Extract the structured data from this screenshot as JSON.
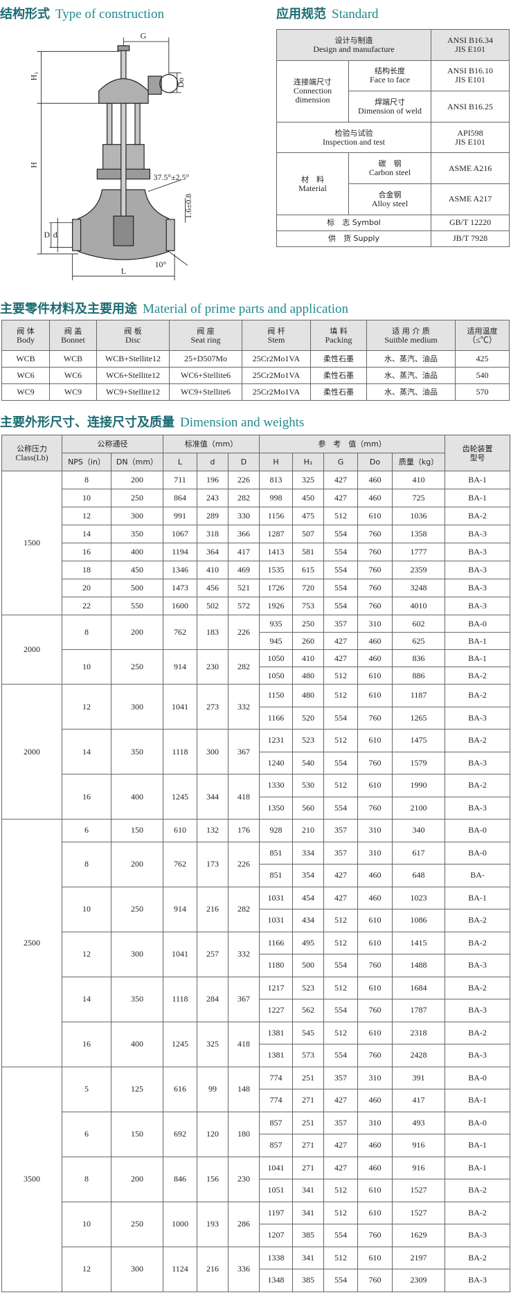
{
  "construction": {
    "title_cn": "结构形式",
    "title_en": "Type of construction",
    "labels": {
      "G": "G",
      "H1": "H₁",
      "Do": "Do",
      "H": "H",
      "angle": "37.5°±2.5°",
      "tolerance": "1.6±0.8",
      "d": "d",
      "D": "D",
      "L": "L",
      "bevel": "10°"
    }
  },
  "standard": {
    "title_cn": "应用规范",
    "title_en": "Standard",
    "design": {
      "cn": "设计与制造",
      "en": "Design and manufacture",
      "value": [
        "ANSI B16.34",
        "JIS E101"
      ]
    },
    "connection": {
      "cn": "连接端尺寸",
      "en": [
        "Connection",
        "dimension"
      ],
      "face": {
        "cn": "结构长度",
        "en": "Face to face",
        "value": [
          "ANSI B16.10",
          "JIS E101"
        ]
      },
      "weld": {
        "cn": "焊端尺寸",
        "en": "Dimension of weld",
        "value": "ANSI B16.25"
      }
    },
    "inspection": {
      "cn": "检验与试验",
      "en": "Inspection and test",
      "value": [
        "API598",
        "JIS E101"
      ]
    },
    "material": {
      "cn": "材　料",
      "en": "Material",
      "carbon": {
        "cn": "碳　钢",
        "en": "Carbon steel",
        "value": "ASME A216"
      },
      "alloy": {
        "cn": "合金钢",
        "en": "Alloy steel",
        "value": "ASME A217"
      }
    },
    "symbol": {
      "label": "标　志 Symbol",
      "value": "GB/T 12220"
    },
    "supply": {
      "label": "供　货 Supply",
      "value": "JB/T 7928"
    }
  },
  "materials": {
    "title_cn": "主要零件材料及主要用途",
    "title_en": "Material of prime parts and application",
    "header": [
      [
        "阀 体",
        "Body"
      ],
      [
        "阀 盖",
        "Bonnet"
      ],
      [
        "阀 板",
        "Disc"
      ],
      [
        "阀 座",
        "Seat ring"
      ],
      [
        "阀 杆",
        "Stem"
      ],
      [
        "填 料",
        "Packing"
      ],
      [
        "适 用 介 质",
        "Suitble medium"
      ],
      [
        "适用温度",
        "（≤℃）"
      ]
    ],
    "rows": [
      [
        "WCB",
        "WCB",
        "WCB+Stellite12",
        "25+D507Mo",
        "25Cr2Mo1VA",
        "柔性石墨",
        "水、蒸汽、油品",
        "425"
      ],
      [
        "WC6",
        "WC6",
        "WC6+Stellite12",
        "WC6+Stellite6",
        "25Cr2Mo1VA",
        "柔性石墨",
        "水、蒸汽、油品",
        "540"
      ],
      [
        "WC9",
        "WC9",
        "WC9+Stellite12",
        "WC9+Stellite6",
        "25Cr2Mo1VA",
        "柔性石墨",
        "水、蒸汽、油品",
        "570"
      ]
    ]
  },
  "dimensions": {
    "title_cn": "主要外形尺寸、连接尺寸及质量",
    "title_en": "Dimension and weights",
    "header": {
      "class_cn": "公称压力",
      "class_en": "Class(Lb)",
      "nominal": "公称通径",
      "standard": "标准值（mm）",
      "reference": "参　考　值（mm）",
      "gear": [
        "齿轮装置",
        "型号"
      ],
      "columns": [
        "NPS（in）",
        "DN（mm）",
        "L",
        "d",
        "D",
        "H",
        "H₁",
        "G",
        "Do",
        "质量（kg）"
      ]
    },
    "groups": [
      {
        "class": "1500",
        "sizes": [
          {
            "nps": "8",
            "dn": "200",
            "L": "711",
            "d": "196",
            "D": "226",
            "rows": [
              [
                "813",
                "325",
                "427",
                "460",
                "410",
                "BA-1"
              ]
            ]
          },
          {
            "nps": "10",
            "dn": "250",
            "L": "864",
            "d": "243",
            "D": "282",
            "rows": [
              [
                "998",
                "450",
                "427",
                "460",
                "725",
                "BA-1"
              ]
            ]
          },
          {
            "nps": "12",
            "dn": "300",
            "L": "991",
            "d": "289",
            "D": "330",
            "rows": [
              [
                "1156",
                "475",
                "512",
                "610",
                "1036",
                "BA-2"
              ]
            ]
          },
          {
            "nps": "14",
            "dn": "350",
            "L": "1067",
            "d": "318",
            "D": "366",
            "rows": [
              [
                "1287",
                "507",
                "554",
                "760",
                "1358",
                "BA-3"
              ]
            ]
          },
          {
            "nps": "16",
            "dn": "400",
            "L": "1194",
            "d": "364",
            "D": "417",
            "rows": [
              [
                "1413",
                "581",
                "554",
                "760",
                "1777",
                "BA-3"
              ]
            ]
          },
          {
            "nps": "18",
            "dn": "450",
            "L": "1346",
            "d": "410",
            "D": "469",
            "rows": [
              [
                "1535",
                "615",
                "554",
                "760",
                "2359",
                "BA-3"
              ]
            ]
          },
          {
            "nps": "20",
            "dn": "500",
            "L": "1473",
            "d": "456",
            "D": "521",
            "rows": [
              [
                "1726",
                "720",
                "554",
                "760",
                "3248",
                "BA-3"
              ]
            ]
          },
          {
            "nps": "22",
            "dn": "550",
            "L": "1600",
            "d": "502",
            "D": "572",
            "rows": [
              [
                "1926",
                "753",
                "554",
                "760",
                "4010",
                "BA-3"
              ]
            ]
          }
        ]
      },
      {
        "class": "2000",
        "sizes": [
          {
            "nps": "8",
            "dn": "200",
            "L": "762",
            "d": "183",
            "D": "226",
            "rows": [
              [
                "935",
                "250",
                "357",
                "310",
                "602",
                "BA-0"
              ],
              [
                "945",
                "260",
                "427",
                "460",
                "625",
                "BA-1"
              ]
            ]
          },
          {
            "nps": "10",
            "dn": "250",
            "L": "914",
            "d": "230",
            "D": "282",
            "rows": [
              [
                "1050",
                "410",
                "427",
                "460",
                "836",
                "BA-1"
              ],
              [
                "1050",
                "480",
                "512",
                "610",
                "886",
                "BA-2"
              ]
            ]
          }
        ]
      },
      {
        "class": "2000",
        "sizes": [
          {
            "nps": "12",
            "dn": "300",
            "L": "1041",
            "d": "273",
            "D": "332",
            "rows": [
              [
                "1150",
                "480",
                "512",
                "610",
                "1187",
                "BA-2"
              ],
              [
                "1166",
                "520",
                "554",
                "760",
                "1265",
                "BA-3"
              ]
            ]
          },
          {
            "nps": "14",
            "dn": "350",
            "L": "1118",
            "d": "300",
            "D": "367",
            "rows": [
              [
                "1231",
                "523",
                "512",
                "610",
                "1475",
                "BA-2"
              ],
              [
                "1240",
                "540",
                "554",
                "760",
                "1579",
                "BA-3"
              ]
            ]
          },
          {
            "nps": "16",
            "dn": "400",
            "L": "1245",
            "d": "344",
            "D": "418",
            "rows": [
              [
                "1330",
                "530",
                "512",
                "610",
                "1990",
                "BA-2"
              ],
              [
                "1350",
                "560",
                "554",
                "760",
                "2100",
                "BA-3"
              ]
            ]
          }
        ]
      },
      {
        "class": "2500",
        "sizes": [
          {
            "nps": "6",
            "dn": "150",
            "L": "610",
            "d": "132",
            "D": "176",
            "rows": [
              [
                "928",
                "210",
                "357",
                "310",
                "340",
                "BA-0"
              ]
            ]
          },
          {
            "nps": "8",
            "dn": "200",
            "L": "762",
            "d": "173",
            "D": "226",
            "rows": [
              [
                "851",
                "334",
                "357",
                "310",
                "617",
                "BA-0"
              ],
              [
                "851",
                "354",
                "427",
                "460",
                "648",
                "BA-"
              ]
            ]
          },
          {
            "nps": "10",
            "dn": "250",
            "L": "914",
            "d": "216",
            "D": "282",
            "rows": [
              [
                "1031",
                "454",
                "427",
                "460",
                "1023",
                "BA-1"
              ],
              [
                "1031",
                "434",
                "512",
                "610",
                "1086",
                "BA-2"
              ]
            ]
          },
          {
            "nps": "12",
            "dn": "300",
            "L": "1041",
            "d": "257",
            "D": "332",
            "rows": [
              [
                "1166",
                "495",
                "512",
                "610",
                "1415",
                "BA-2"
              ],
              [
                "1180",
                "500",
                "554",
                "760",
                "1488",
                "BA-3"
              ]
            ]
          },
          {
            "nps": "14",
            "dn": "350",
            "L": "1118",
            "d": "284",
            "D": "367",
            "rows": [
              [
                "1217",
                "523",
                "512",
                "610",
                "1684",
                "BA-2"
              ],
              [
                "1227",
                "562",
                "554",
                "760",
                "1787",
                "BA-3"
              ]
            ]
          },
          {
            "nps": "16",
            "dn": "400",
            "L": "1245",
            "d": "325",
            "D": "418",
            "rows": [
              [
                "1381",
                "545",
                "512",
                "610",
                "2318",
                "BA-2"
              ],
              [
                "1381",
                "573",
                "554",
                "760",
                "2428",
                "BA-3"
              ]
            ]
          }
        ]
      },
      {
        "class": "3500",
        "sizes": [
          {
            "nps": "5",
            "dn": "125",
            "L": "616",
            "d": "99",
            "D": "148",
            "rows": [
              [
                "774",
                "251",
                "357",
                "310",
                "391",
                "BA-0"
              ],
              [
                "774",
                "271",
                "427",
                "460",
                "417",
                "BA-1"
              ]
            ]
          },
          {
            "nps": "6",
            "dn": "150",
            "L": "692",
            "d": "120",
            "D": "180",
            "rows": [
              [
                "857",
                "251",
                "357",
                "310",
                "493",
                "BA-0"
              ],
              [
                "857",
                "271",
                "427",
                "460",
                "916",
                "BA-1"
              ]
            ]
          },
          {
            "nps": "8",
            "dn": "200",
            "L": "846",
            "d": "156",
            "D": "230",
            "rows": [
              [
                "1041",
                "271",
                "427",
                "460",
                "916",
                "BA-1"
              ],
              [
                "1051",
                "341",
                "512",
                "610",
                "1527",
                "BA-2"
              ]
            ]
          },
          {
            "nps": "10",
            "dn": "250",
            "L": "1000",
            "d": "193",
            "D": "286",
            "rows": [
              [
                "1197",
                "341",
                "512",
                "610",
                "1527",
                "BA-2"
              ],
              [
                "1207",
                "385",
                "554",
                "760",
                "1629",
                "BA-3"
              ]
            ]
          },
          {
            "nps": "12",
            "dn": "300",
            "L": "1124",
            "d": "216",
            "D": "336",
            "rows": [
              [
                "1338",
                "341",
                "512",
                "610",
                "2197",
                "BA-2"
              ],
              [
                "1348",
                "385",
                "554",
                "760",
                "2309",
                "BA-3"
              ]
            ]
          }
        ]
      }
    ]
  }
}
